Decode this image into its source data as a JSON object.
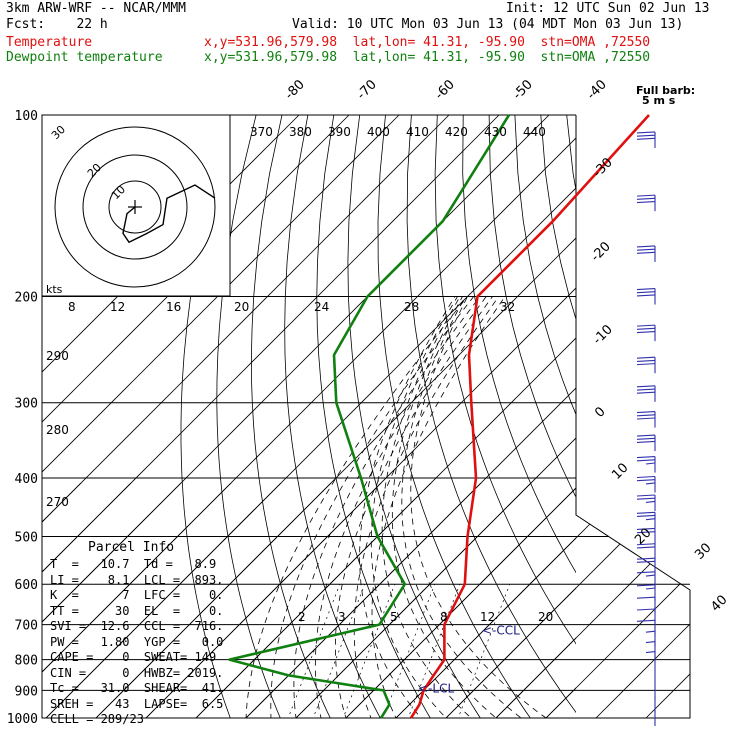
{
  "header": {
    "model": "3km ARW-WRF -- NCAR/MMM",
    "init": "Init: 12 UTC Sun 02 Jun 13",
    "fcst": "Fcst:    22 h",
    "valid": "Valid: 10 UTC Mon 03 Jun 13 (04 MDT Mon 03 Jun 13)",
    "temp_label": "Temperature",
    "dew_label": "Dewpoint temperature",
    "temp_loc": "x,y=531.96,579.98  lat,lon= 41.31, -95.90  stn=OMA ,72550",
    "dew_loc": "x,y=531.96,579.98  lat,lon= 41.31, -95.90  stn=OMA ,72550"
  },
  "colors": {
    "temperature": "#e01010",
    "dewpoint": "#108010",
    "barbs": "#3030b0",
    "lines": "#000000"
  },
  "chart_data": {
    "type": "line",
    "title": "",
    "pressure_levels": [
      {
        "p": 100,
        "label": "100"
      },
      {
        "p": 200,
        "label": "200"
      },
      {
        "p": 300,
        "label": "300"
      },
      {
        "p": 400,
        "label": "400"
      },
      {
        "p": 500,
        "label": "500"
      },
      {
        "p": 600,
        "label": "600"
      },
      {
        "p": 700,
        "label": "700"
      },
      {
        "p": 800,
        "label": "800"
      },
      {
        "p": 900,
        "label": "900"
      },
      {
        "p": 1000,
        "label": "1000"
      }
    ],
    "isotherm_labels": [
      {
        "t": -80,
        "label": "-80"
      },
      {
        "t": -70,
        "label": "-70"
      },
      {
        "t": -60,
        "label": "-60"
      },
      {
        "t": -50,
        "label": "-50"
      },
      {
        "t": -40,
        "label": "-40"
      },
      {
        "t": -30,
        "label": "-30"
      },
      {
        "t": -20,
        "label": "-20"
      },
      {
        "t": -10,
        "label": "-10"
      },
      {
        "t": 0,
        "label": "0"
      },
      {
        "t": 10,
        "label": "10"
      },
      {
        "t": 20,
        "label": "20"
      },
      {
        "t": 30,
        "label": "30"
      },
      {
        "t": 40,
        "label": "40"
      }
    ],
    "theta_labels": [
      "370",
      "380",
      "390",
      "400",
      "410",
      "420",
      "430",
      "440"
    ],
    "theta_side_labels": [
      "290",
      "280",
      "270"
    ],
    "mixing_ratio_labels": [
      "2",
      "3",
      "5",
      "8",
      "12",
      "20"
    ],
    "series": [
      {
        "name": "Temperature",
        "color": "#e01010",
        "points": [
          [
            100,
            -60
          ],
          [
            150,
            -58
          ],
          [
            200,
            -58
          ],
          [
            250,
            -48
          ],
          [
            300,
            -38
          ],
          [
            400,
            -22
          ],
          [
            500,
            -12
          ],
          [
            600,
            -3
          ],
          [
            700,
            1
          ],
          [
            800,
            8
          ],
          [
            850,
            9
          ],
          [
            900,
            10
          ],
          [
            950,
            12
          ],
          [
            1000,
            13
          ]
        ]
      },
      {
        "name": "Dewpoint temperature",
        "color": "#108010",
        "points": [
          [
            100,
            -88
          ],
          [
            150,
            -80
          ],
          [
            200,
            -80
          ],
          [
            250,
            -75
          ],
          [
            300,
            -65
          ],
          [
            400,
            -45
          ],
          [
            500,
            -30
          ],
          [
            600,
            -15
          ],
          [
            700,
            -12
          ],
          [
            800,
            -35
          ],
          [
            850,
            -20
          ],
          [
            900,
            2
          ],
          [
            950,
            6
          ],
          [
            1000,
            7
          ]
        ]
      }
    ],
    "annotations": [
      {
        "label": "<-CCL",
        "p": 716
      },
      {
        "label": "<-LCL",
        "p": 893
      }
    ],
    "hodograph": {
      "ring_labels": [
        "10",
        "20",
        "30"
      ],
      "units": "kts",
      "path": [
        [
          0,
          0
        ],
        [
          -4,
          3
        ],
        [
          -6,
          12
        ],
        [
          -3,
          16
        ],
        [
          6,
          12
        ],
        [
          14,
          8
        ],
        [
          16,
          -4
        ],
        [
          30,
          -10
        ],
        [
          40,
          -4
        ]
      ]
    },
    "wind_barb_title": "Full barb:",
    "wind_barb_units": "5 m s",
    "winds": [
      {
        "p": 110,
        "spd": 30
      },
      {
        "p": 140,
        "spd": 30
      },
      {
        "p": 170,
        "spd": 30
      },
      {
        "p": 200,
        "spd": 30
      },
      {
        "p": 230,
        "spd": 30
      },
      {
        "p": 260,
        "spd": 30
      },
      {
        "p": 290,
        "spd": 30
      },
      {
        "p": 320,
        "spd": 30
      },
      {
        "p": 350,
        "spd": 30
      },
      {
        "p": 380,
        "spd": 28
      },
      {
        "p": 410,
        "spd": 28
      },
      {
        "p": 440,
        "spd": 26
      },
      {
        "p": 470,
        "spd": 26
      },
      {
        "p": 500,
        "spd": 24
      },
      {
        "p": 530,
        "spd": 22
      },
      {
        "p": 560,
        "spd": 20
      },
      {
        "p": 590,
        "spd": 18
      },
      {
        "p": 620,
        "spd": 16
      },
      {
        "p": 650,
        "spd": 14
      },
      {
        "p": 680,
        "spd": 12
      },
      {
        "p": 710,
        "spd": 10
      },
      {
        "p": 740,
        "spd": 8
      },
      {
        "p": 770,
        "spd": 6
      },
      {
        "p": 800,
        "spd": 5
      },
      {
        "p": 850,
        "spd": 4
      },
      {
        "p": 900,
        "spd": 3
      },
      {
        "p": 950,
        "spd": 2
      },
      {
        "p": 1000,
        "spd": 2
      }
    ]
  },
  "parcel": {
    "title": "Parcel Info",
    "rows": [
      "T  =   10.7  Td =   8.9",
      "LI =    8.1  LCL =  893.",
      "K  =      7  LFC =    0.",
      "TT =     30  EL  =    0.",
      "SVI =  12.6  CCL =  716.",
      "PW =   1.80  YGP =   0.0",
      "CAPE =    0  SWEAT= 149",
      "CIN =     0  HWBZ= 2019.",
      "Tc =   31.0  SHEAR=  41.",
      "SREH =   43  LAPSE=  6.5",
      "CELL = 289/23"
    ]
  }
}
